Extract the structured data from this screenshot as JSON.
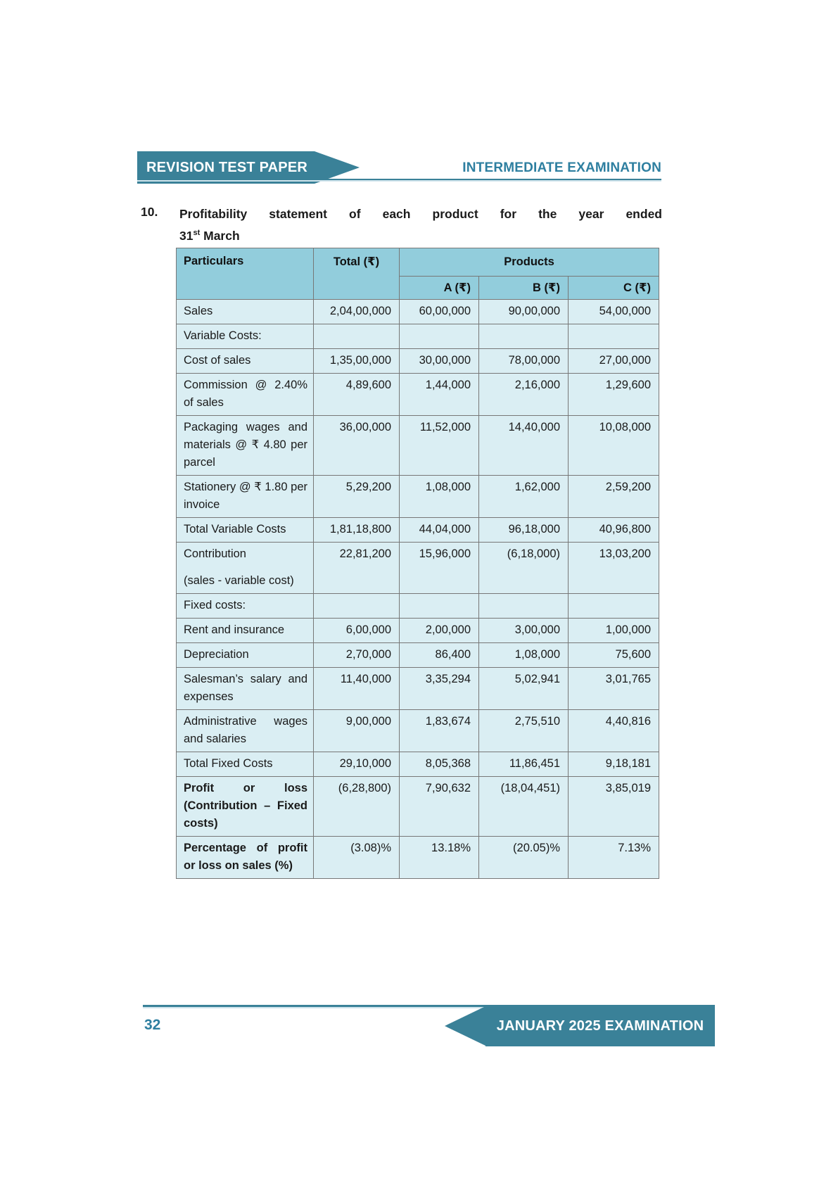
{
  "header": {
    "banner_label": "REVISION TEST PAPER",
    "exam_label": "INTERMEDIATE EXAMINATION"
  },
  "question": {
    "number": "10.",
    "title_line1": "Profitability statement of each product for the year ended",
    "title_line2_base": "31",
    "title_line2_sup": "st",
    "title_line2_rest": " March"
  },
  "table": {
    "columns": {
      "particulars": "Particulars",
      "total": "Total (₹)",
      "products_group": "Products",
      "product_a": "A (₹)",
      "product_b": "B (₹)",
      "product_c": "C (₹)"
    },
    "rows": [
      {
        "label": "Sales",
        "total": "2,04,00,000",
        "a": "60,00,000",
        "b": "90,00,000",
        "c": "54,00,000"
      },
      {
        "label": "Variable Costs:",
        "total": "",
        "a": "",
        "b": "",
        "c": ""
      },
      {
        "label": "Cost of sales",
        "total": "1,35,00,000",
        "a": "30,00,000",
        "b": "78,00,000",
        "c": "27,00,000"
      },
      {
        "label": "Commission @ 2.40% of sales",
        "total": "4,89,600",
        "a": "1,44,000",
        "b": "2,16,000",
        "c": "1,29,600"
      },
      {
        "label": "Packaging wages and materials @ ₹ 4.80 per parcel",
        "total": "36,00,000",
        "a": "11,52,000",
        "b": "14,40,000",
        "c": "10,08,000"
      },
      {
        "label": "Stationery @ ₹ 1.80 per invoice",
        "total": "5,29,200",
        "a": "1,08,000",
        "b": "1,62,000",
        "c": "2,59,200"
      },
      {
        "label": "Total Variable Costs",
        "total": "1,81,18,800",
        "a": "44,04,000",
        "b": "96,18,000",
        "c": "40,96,800"
      },
      {
        "label": "Contribution",
        "label2": "(sales - variable cost)",
        "total": "22,81,200",
        "a": "15,96,000",
        "b": "(6,18,000)",
        "c": "13,03,200"
      },
      {
        "label": "Fixed costs:",
        "total": "",
        "a": "",
        "b": "",
        "c": ""
      },
      {
        "label": "Rent and insurance",
        "total": "6,00,000",
        "a": "2,00,000",
        "b": "3,00,000",
        "c": "1,00,000"
      },
      {
        "label": "Depreciation",
        "total": "2,70,000",
        "a": "86,400",
        "b": "1,08,000",
        "c": "75,600"
      },
      {
        "label": "Salesman’s salary and expenses",
        "total": "11,40,000",
        "a": "3,35,294",
        "b": "5,02,941",
        "c": "3,01,765"
      },
      {
        "label": "Administrative wages and salaries",
        "total": "9,00,000",
        "a": "1,83,674",
        "b": "2,75,510",
        "c": "4,40,816"
      },
      {
        "label": "Total Fixed Costs",
        "total": "29,10,000",
        "a": "8,05,368",
        "b": "11,86,451",
        "c": "9,18,181"
      },
      {
        "label": "Profit or loss (Contribution – Fixed costs)",
        "bold": true,
        "total": "(6,28,800)",
        "a": "7,90,632",
        "b": "(18,04,451)",
        "c": "3,85,019"
      },
      {
        "label": "Percentage of profit or loss on sales (%)",
        "bold": true,
        "total": "(3.08)%",
        "a": "13.18%",
        "b": "(20.05)%",
        "c": "7.13%"
      }
    ]
  },
  "footer": {
    "page_number": "32",
    "banner_label": "JANUARY 2025 EXAMINATION"
  },
  "colors": {
    "teal_banner": "#3A8198",
    "teal_text": "#2E7FA0",
    "table_header_bg": "#92CDDC",
    "table_body_bg": "#DAEEF3"
  }
}
